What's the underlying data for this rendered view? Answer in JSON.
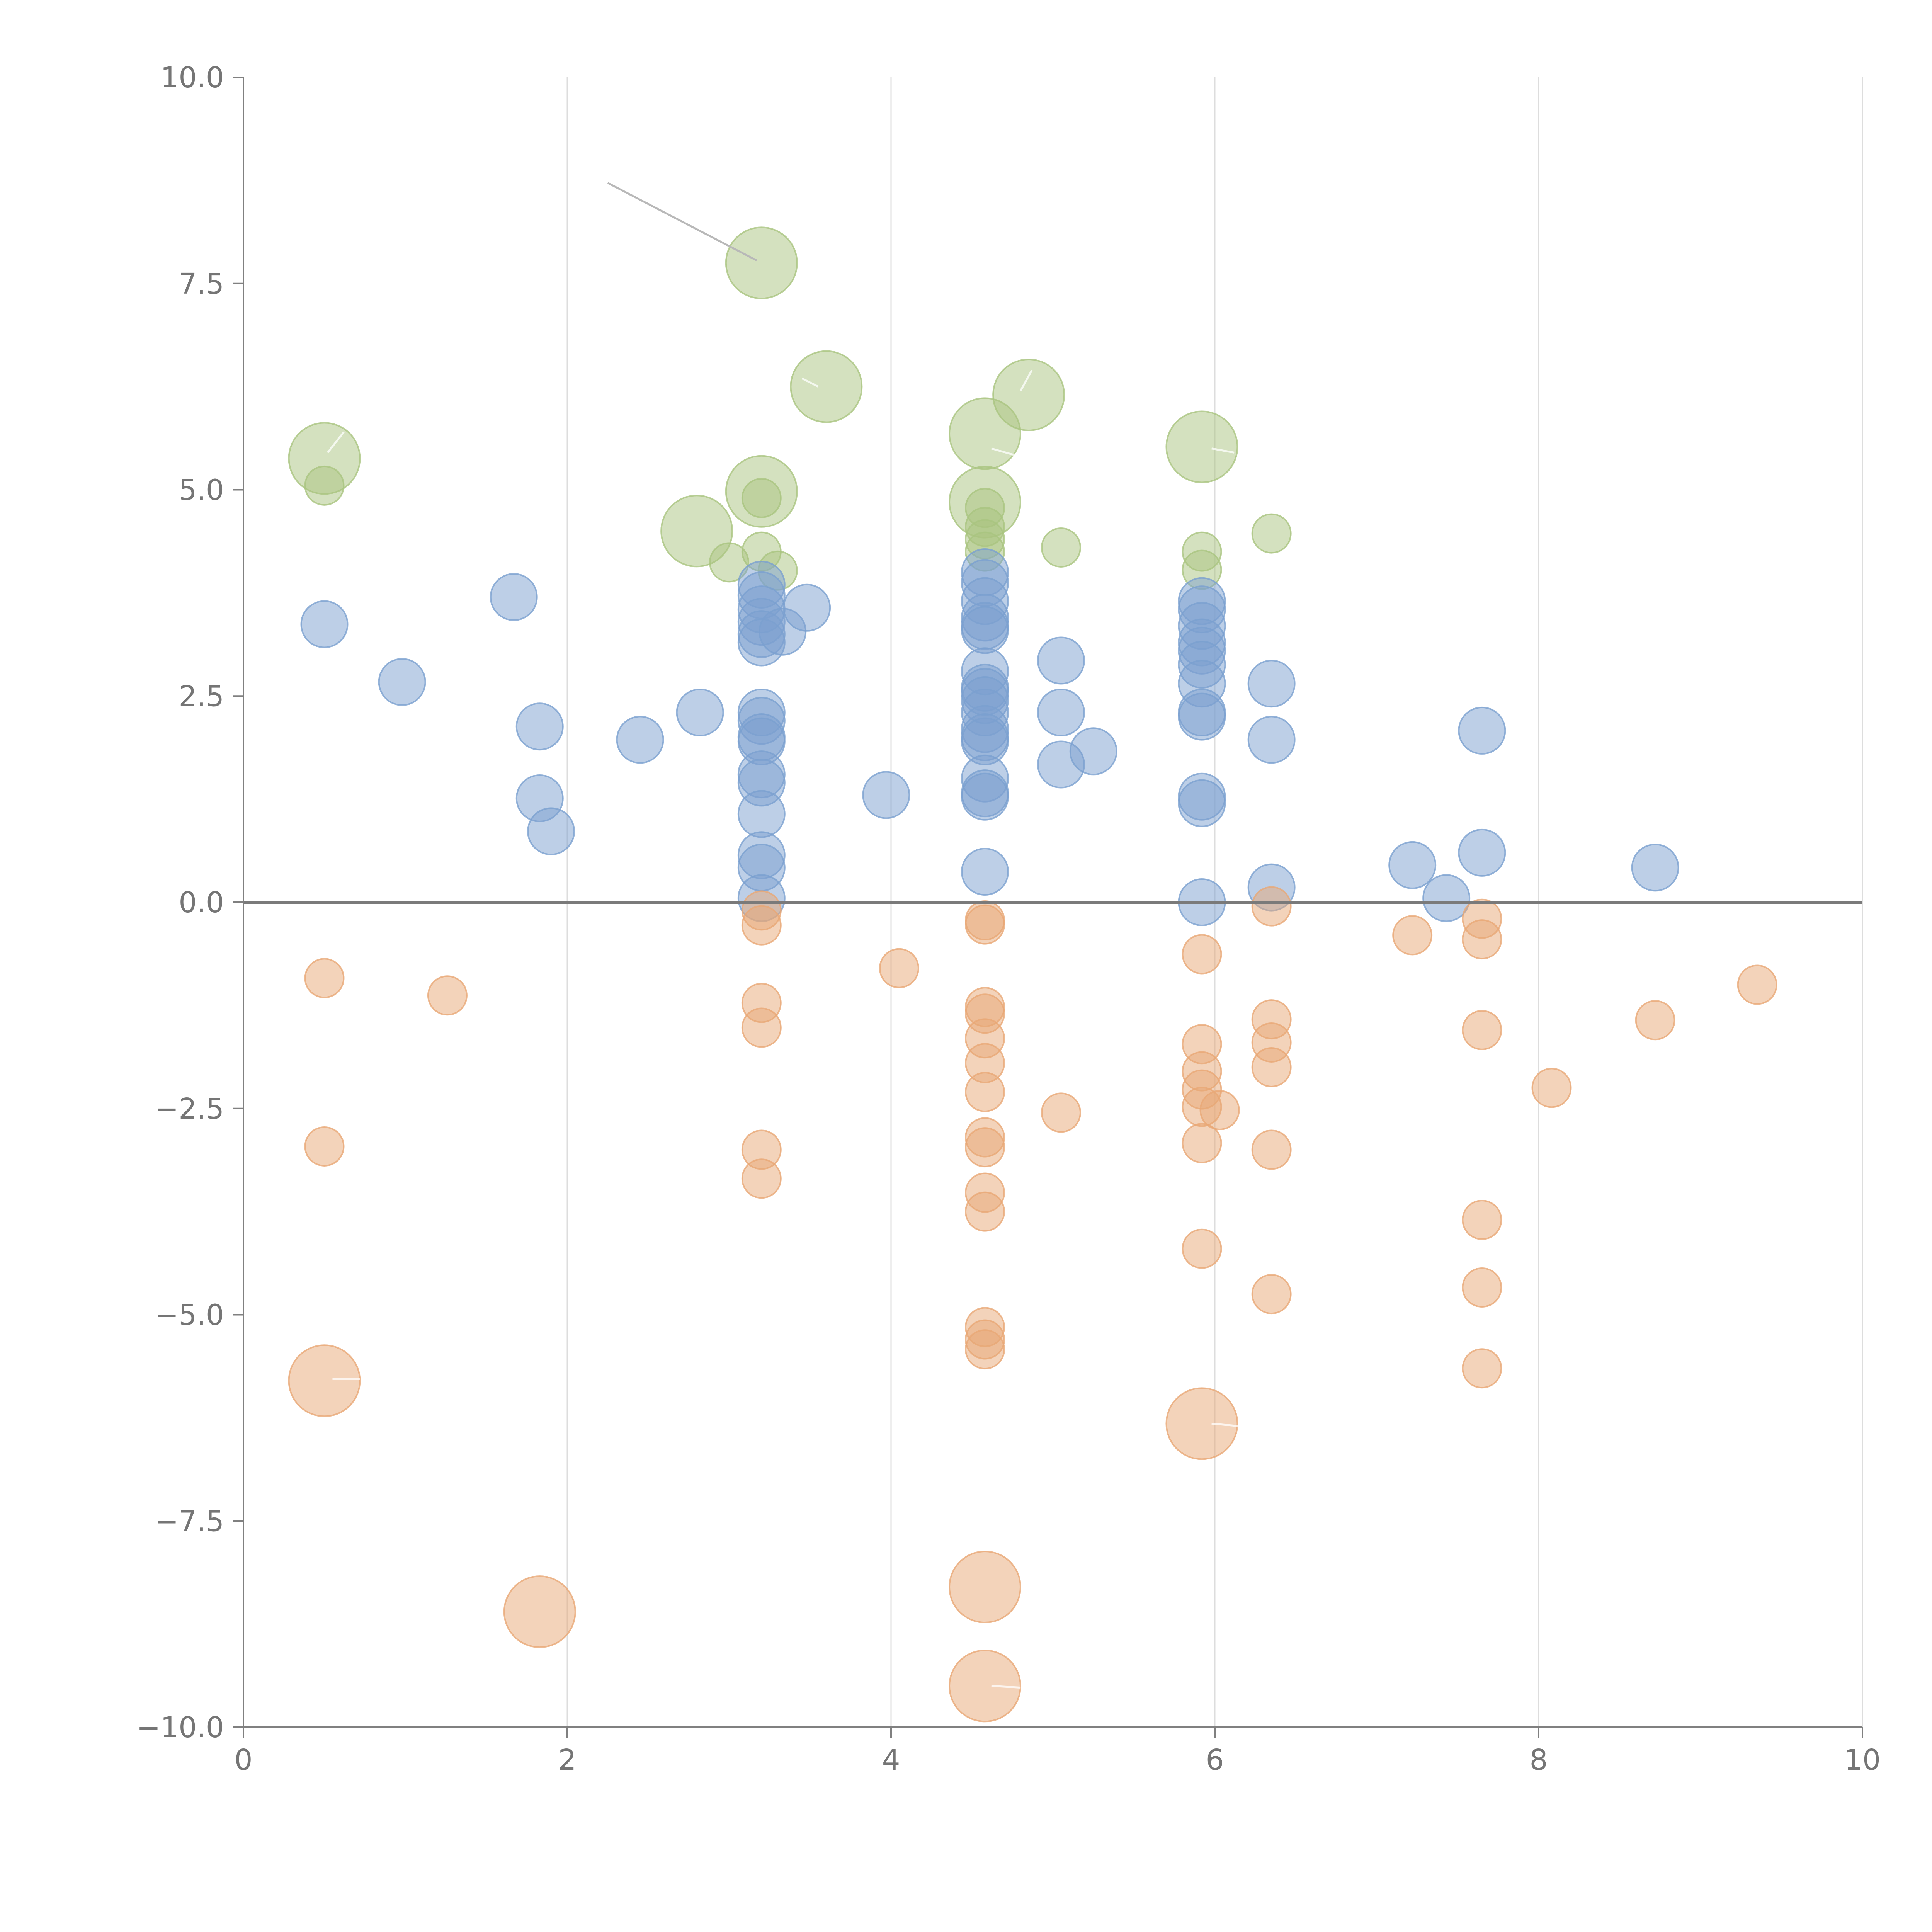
{
  "chart_data": {
    "type": "scatter",
    "title": "",
    "xlabel": "",
    "ylabel": "",
    "xlim": [
      0,
      10
    ],
    "ylim": [
      -10,
      10
    ],
    "x_ticks": [
      "0",
      "2",
      "4",
      "6",
      "8",
      "10"
    ],
    "y_ticks": [
      "10.0",
      "7.5",
      "5.0",
      "2.5",
      "0.0",
      "−2.5",
      "−5.0",
      "−7.5",
      "−10.0"
    ],
    "x_tick_values": [
      0,
      2,
      4,
      6,
      8,
      10
    ],
    "y_tick_values": [
      10,
      7.5,
      5,
      2.5,
      0,
      -2.5,
      -5,
      -7.5,
      -10
    ],
    "grid": "vertical",
    "reference_line_y": 0,
    "series": [
      {
        "color": "#a9c47f",
        "points": [
          {
            "x": 0.5,
            "y": 5.38,
            "size": "large"
          },
          {
            "x": 0.5,
            "y": 5.05,
            "size": "small"
          },
          {
            "x": 2.8,
            "y": 4.5,
            "size": "large"
          },
          {
            "x": 3.0,
            "y": 4.12,
            "size": "small"
          },
          {
            "x": 3.2,
            "y": 7.75,
            "size": "large"
          },
          {
            "x": 3.2,
            "y": 4.98,
            "size": "large"
          },
          {
            "x": 3.2,
            "y": 4.9,
            "size": "small"
          },
          {
            "x": 3.2,
            "y": 4.25,
            "size": "small"
          },
          {
            "x": 3.3,
            "y": 4.02,
            "size": "small"
          },
          {
            "x": 3.6,
            "y": 6.25,
            "size": "large"
          },
          {
            "x": 4.58,
            "y": 5.68,
            "size": "large"
          },
          {
            "x": 4.58,
            "y": 4.85,
            "size": "large"
          },
          {
            "x": 4.58,
            "y": 4.78,
            "size": "small"
          },
          {
            "x": 4.58,
            "y": 4.55,
            "size": "small"
          },
          {
            "x": 4.58,
            "y": 4.4,
            "size": "small"
          },
          {
            "x": 4.58,
            "y": 4.25,
            "size": "small"
          },
          {
            "x": 4.85,
            "y": 6.15,
            "size": "large"
          },
          {
            "x": 5.05,
            "y": 4.3,
            "size": "small"
          },
          {
            "x": 5.92,
            "y": 5.52,
            "size": "large"
          },
          {
            "x": 5.92,
            "y": 4.25,
            "size": "small"
          },
          {
            "x": 5.92,
            "y": 4.03,
            "size": "small"
          },
          {
            "x": 6.35,
            "y": 4.47,
            "size": "small"
          }
        ]
      },
      {
        "color": "#7ba0d0",
        "points": [
          {
            "x": 0.5,
            "y": 3.37
          },
          {
            "x": 0.98,
            "y": 2.67
          },
          {
            "x": 1.67,
            "y": 3.7
          },
          {
            "x": 1.83,
            "y": 2.13
          },
          {
            "x": 1.83,
            "y": 1.26
          },
          {
            "x": 1.9,
            "y": 0.86
          },
          {
            "x": 2.45,
            "y": 1.97
          },
          {
            "x": 2.82,
            "y": 2.3
          },
          {
            "x": 3.2,
            "y": 3.85
          },
          {
            "x": 3.2,
            "y": 3.72
          },
          {
            "x": 3.2,
            "y": 3.55
          },
          {
            "x": 3.2,
            "y": 3.4
          },
          {
            "x": 3.2,
            "y": 3.25
          },
          {
            "x": 3.2,
            "y": 3.15
          },
          {
            "x": 3.2,
            "y": 2.3
          },
          {
            "x": 3.2,
            "y": 2.2
          },
          {
            "x": 3.2,
            "y": 2.0
          },
          {
            "x": 3.2,
            "y": 1.95
          },
          {
            "x": 3.2,
            "y": 1.55
          },
          {
            "x": 3.2,
            "y": 1.45
          },
          {
            "x": 3.2,
            "y": 1.07
          },
          {
            "x": 3.2,
            "y": 0.57
          },
          {
            "x": 3.2,
            "y": 0.42
          },
          {
            "x": 3.2,
            "y": 0.05
          },
          {
            "x": 3.33,
            "y": 3.28
          },
          {
            "x": 3.48,
            "y": 3.57
          },
          {
            "x": 3.97,
            "y": 1.3
          },
          {
            "x": 4.58,
            "y": 4.0
          },
          {
            "x": 4.58,
            "y": 3.87
          },
          {
            "x": 4.58,
            "y": 3.65
          },
          {
            "x": 4.58,
            "y": 3.45
          },
          {
            "x": 4.58,
            "y": 3.35
          },
          {
            "x": 4.58,
            "y": 3.3
          },
          {
            "x": 4.58,
            "y": 2.8
          },
          {
            "x": 4.58,
            "y": 2.6
          },
          {
            "x": 4.58,
            "y": 2.55
          },
          {
            "x": 4.58,
            "y": 2.45
          },
          {
            "x": 4.58,
            "y": 2.3
          },
          {
            "x": 4.58,
            "y": 2.1
          },
          {
            "x": 4.58,
            "y": 2.0
          },
          {
            "x": 4.58,
            "y": 1.95
          },
          {
            "x": 4.58,
            "y": 1.5
          },
          {
            "x": 4.58,
            "y": 1.32
          },
          {
            "x": 4.58,
            "y": 1.28
          },
          {
            "x": 4.58,
            "y": 0.37
          },
          {
            "x": 5.05,
            "y": 2.93
          },
          {
            "x": 5.05,
            "y": 2.3
          },
          {
            "x": 5.05,
            "y": 1.67
          },
          {
            "x": 5.25,
            "y": 1.83
          },
          {
            "x": 5.92,
            "y": 3.65
          },
          {
            "x": 5.92,
            "y": 3.55
          },
          {
            "x": 5.92,
            "y": 3.35
          },
          {
            "x": 5.92,
            "y": 3.15
          },
          {
            "x": 5.92,
            "y": 3.05
          },
          {
            "x": 5.92,
            "y": 2.88
          },
          {
            "x": 5.92,
            "y": 2.65
          },
          {
            "x": 5.92,
            "y": 2.3
          },
          {
            "x": 5.92,
            "y": 2.25
          },
          {
            "x": 5.92,
            "y": 1.28
          },
          {
            "x": 5.92,
            "y": 1.2
          },
          {
            "x": 5.92,
            "y": 0.0
          },
          {
            "x": 6.35,
            "y": 2.65
          },
          {
            "x": 6.35,
            "y": 1.97
          },
          {
            "x": 6.35,
            "y": 0.18
          },
          {
            "x": 7.22,
            "y": 0.45
          },
          {
            "x": 7.43,
            "y": 0.05
          },
          {
            "x": 7.65,
            "y": 2.08
          },
          {
            "x": 7.65,
            "y": 0.6
          },
          {
            "x": 8.72,
            "y": 0.42
          }
        ]
      },
      {
        "color": "#e8a775",
        "points": [
          {
            "x": 0.5,
            "y": -0.92,
            "size": "small"
          },
          {
            "x": 0.5,
            "y": -2.96,
            "size": "small"
          },
          {
            "x": 0.5,
            "y": -5.8,
            "size": "large"
          },
          {
            "x": 1.26,
            "y": -1.13,
            "size": "small"
          },
          {
            "x": 1.83,
            "y": -8.6,
            "size": "large"
          },
          {
            "x": 3.2,
            "y": -0.1,
            "size": "small"
          },
          {
            "x": 3.2,
            "y": -0.28,
            "size": "small"
          },
          {
            "x": 3.2,
            "y": -1.22,
            "size": "small"
          },
          {
            "x": 3.2,
            "y": -1.52,
            "size": "small"
          },
          {
            "x": 3.2,
            "y": -3.0,
            "size": "small"
          },
          {
            "x": 3.2,
            "y": -3.35,
            "size": "small"
          },
          {
            "x": 4.05,
            "y": -0.8,
            "size": "small"
          },
          {
            "x": 4.58,
            "y": -0.22,
            "size": "small"
          },
          {
            "x": 4.58,
            "y": -0.27,
            "size": "small"
          },
          {
            "x": 4.58,
            "y": -1.27,
            "size": "small"
          },
          {
            "x": 4.58,
            "y": -1.35,
            "size": "small"
          },
          {
            "x": 4.58,
            "y": -1.65,
            "size": "small"
          },
          {
            "x": 4.58,
            "y": -1.95,
            "size": "small"
          },
          {
            "x": 4.58,
            "y": -2.3,
            "size": "small"
          },
          {
            "x": 4.58,
            "y": -2.85,
            "size": "small"
          },
          {
            "x": 4.58,
            "y": -2.97,
            "size": "small"
          },
          {
            "x": 4.58,
            "y": -3.52,
            "size": "small"
          },
          {
            "x": 4.58,
            "y": -3.75,
            "size": "small"
          },
          {
            "x": 4.58,
            "y": -5.15,
            "size": "small"
          },
          {
            "x": 4.58,
            "y": -5.3,
            "size": "small"
          },
          {
            "x": 4.58,
            "y": -5.42,
            "size": "small"
          },
          {
            "x": 4.58,
            "y": -8.3,
            "size": "large"
          },
          {
            "x": 4.58,
            "y": -9.5,
            "size": "large"
          },
          {
            "x": 5.05,
            "y": -2.55,
            "size": "small"
          },
          {
            "x": 5.92,
            "y": -0.63,
            "size": "small"
          },
          {
            "x": 5.92,
            "y": -1.72,
            "size": "small"
          },
          {
            "x": 5.92,
            "y": -2.05,
            "size": "small"
          },
          {
            "x": 5.92,
            "y": -2.27,
            "size": "small"
          },
          {
            "x": 5.92,
            "y": -2.48,
            "size": "small"
          },
          {
            "x": 5.92,
            "y": -2.92,
            "size": "small"
          },
          {
            "x": 5.92,
            "y": -4.2,
            "size": "small"
          },
          {
            "x": 5.92,
            "y": -6.32,
            "size": "large"
          },
          {
            "x": 6.03,
            "y": -2.52,
            "size": "small"
          },
          {
            "x": 6.35,
            "y": -0.05,
            "size": "small"
          },
          {
            "x": 6.35,
            "y": -1.42,
            "size": "small"
          },
          {
            "x": 6.35,
            "y": -1.7,
            "size": "small"
          },
          {
            "x": 6.35,
            "y": -2.0,
            "size": "small"
          },
          {
            "x": 6.35,
            "y": -3.0,
            "size": "small"
          },
          {
            "x": 6.35,
            "y": -4.75,
            "size": "small"
          },
          {
            "x": 7.22,
            "y": -0.4,
            "size": "small"
          },
          {
            "x": 7.65,
            "y": -0.2,
            "size": "small"
          },
          {
            "x": 7.65,
            "y": -0.45,
            "size": "small"
          },
          {
            "x": 7.65,
            "y": -1.55,
            "size": "small"
          },
          {
            "x": 7.65,
            "y": -3.85,
            "size": "small"
          },
          {
            "x": 7.65,
            "y": -4.67,
            "size": "small"
          },
          {
            "x": 7.65,
            "y": -5.65,
            "size": "small"
          },
          {
            "x": 8.08,
            "y": -2.25,
            "size": "small"
          },
          {
            "x": 8.72,
            "y": -1.43,
            "size": "small"
          },
          {
            "x": 9.35,
            "y": -1.0,
            "size": "small"
          }
        ]
      }
    ]
  }
}
